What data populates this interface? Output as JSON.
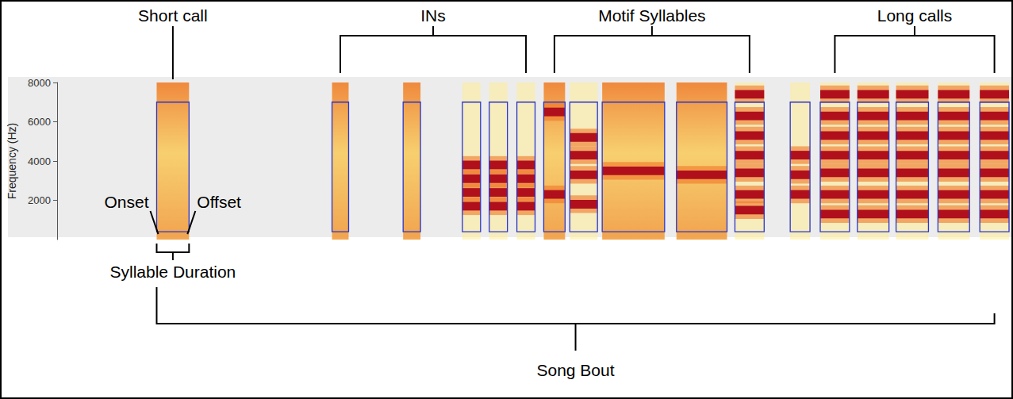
{
  "chart_data": {
    "type": "spectrogram",
    "y_label": "Frequency (Hz)",
    "ylim": [
      0,
      8000
    ],
    "yticks": [
      2000,
      4000,
      6000,
      8000
    ],
    "xlim": [
      0,
      1210
    ],
    "tick_labels": "y",
    "box_range": [
      400,
      7000
    ],
    "groups": [
      {
        "label": "Short call",
        "syllables": [
          {
            "onset": 126,
            "offset": 167,
            "type": "noisy",
            "harmonics": []
          }
        ]
      },
      {
        "label": "INs",
        "syllables": [
          {
            "onset": 348,
            "offset": 369,
            "type": "noisy",
            "harmonics": []
          },
          {
            "onset": 438,
            "offset": 460,
            "type": "noisy",
            "harmonics": []
          },
          {
            "onset": 513,
            "offset": 536,
            "type": "harmonic",
            "harmonics": [
              3800,
              3100,
              2400,
              1700
            ]
          },
          {
            "onset": 547,
            "offset": 570,
            "type": "harmonic",
            "harmonics": [
              3800,
              3100,
              2400,
              1700
            ]
          },
          {
            "onset": 582,
            "offset": 605,
            "type": "harmonic",
            "harmonics": [
              3800,
              3100,
              2400,
              1700
            ]
          }
        ]
      },
      {
        "label": "Motif Syllables",
        "syllables": [
          {
            "onset": 616,
            "offset": 643,
            "type": "noisy",
            "harmonics": [
              6500,
              2300
            ]
          },
          {
            "onset": 649,
            "offset": 684,
            "type": "harmonic",
            "harmonics": [
              5200,
              4300,
              3300,
              1800
            ]
          },
          {
            "onset": 690,
            "offset": 769,
            "type": "noisy",
            "harmonics": [
              3500
            ]
          },
          {
            "onset": 784,
            "offset": 848,
            "type": "noisy",
            "harmonics": [
              3300
            ]
          },
          {
            "onset": 858,
            "offset": 895,
            "type": "harmonic",
            "harmonics": [
              7400,
              6300,
              5300,
              4300,
              3400,
              2300,
              1500
            ]
          }
        ]
      },
      {
        "label": null,
        "syllables": [
          {
            "onset": 928,
            "offset": 953,
            "type": "harmonic",
            "harmonics": [
              4300,
              3300,
              2300
            ]
          }
        ]
      },
      {
        "label": "Long calls",
        "syllables": [
          {
            "onset": 966,
            "offset": 1003,
            "type": "harmonic",
            "harmonics": [
              7400,
              6300,
              5300,
              4300,
              3400,
              2300,
              1300
            ]
          },
          {
            "onset": 1013,
            "offset": 1053,
            "type": "harmonic",
            "harmonics": [
              7400,
              6300,
              5300,
              4300,
              3400,
              2300,
              1300
            ]
          },
          {
            "onset": 1062,
            "offset": 1103,
            "type": "harmonic",
            "harmonics": [
              7400,
              6300,
              5300,
              4300,
              3400,
              2300,
              1300
            ]
          },
          {
            "onset": 1115,
            "offset": 1155,
            "type": "harmonic",
            "harmonics": [
              7400,
              6300,
              5300,
              4300,
              3400,
              2300,
              1300
            ]
          },
          {
            "onset": 1168,
            "offset": 1205,
            "type": "harmonic",
            "harmonics": [
              7400,
              6300,
              5300,
              4300,
              3400,
              2300,
              1300
            ]
          }
        ]
      }
    ],
    "annotations": {
      "onset": "Onset",
      "offset": "Offset",
      "duration": "Syllable Duration",
      "bout": "Song Bout"
    }
  }
}
